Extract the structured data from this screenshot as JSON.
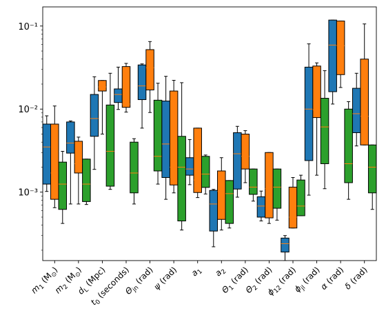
{
  "chart_data": {
    "type": "box",
    "yscale": "log",
    "ylim": [
      0.00015,
      0.17
    ],
    "y_tick_labels": [
      "10⁻³",
      "10⁻²",
      "10⁻¹"
    ],
    "y_ticks": [
      0.001,
      0.01,
      0.1
    ],
    "grid": false,
    "series_colors": [
      "#1f77b4",
      "#ff7f0e",
      "#2ca02c"
    ],
    "median_color": "#ff7f0e",
    "categories": [
      {
        "main": "m",
        "sub": "1",
        "rest": " (M",
        "sun": "⊙",
        "close": ")"
      },
      {
        "main": "m",
        "sub": "2",
        "rest": " (M",
        "sun": "⊙",
        "close": ")"
      },
      {
        "main": "d",
        "sub": "L",
        "rest": " (Mpc)"
      },
      {
        "main": "t",
        "sub": "0",
        "rest": " (seconds)"
      },
      {
        "main": "Θ",
        "sub": "jn",
        "rest": " (rad)"
      },
      {
        "main": "ψ",
        "rest": " (rad)"
      },
      {
        "main": "a",
        "sub": "1"
      },
      {
        "main": "a",
        "sub": "2"
      },
      {
        "main": "Θ",
        "sub": "1",
        "rest": " (rad)"
      },
      {
        "main": "Θ",
        "sub": "2",
        "rest": " (rad)"
      },
      {
        "main": "ϕ",
        "sub": "12",
        "rest": " (rad)"
      },
      {
        "main": "ϕ",
        "sub": "jl",
        "rest": " (rad)"
      },
      {
        "main": "α",
        "rest": " (rad)"
      },
      {
        "main": "δ",
        "rest": " (rad)"
      }
    ],
    "boxes": [
      [
        {
          "wlo": 0.00102,
          "q1": 0.00125,
          "med": 0.0035,
          "q3": 0.0066,
          "whi": 0.0083
        },
        {
          "wlo": 0.00065,
          "q1": 0.00082,
          "med": 0.0017,
          "q3": 0.0066,
          "whi": 0.0109
        },
        {
          "wlo": 0.00042,
          "q1": 0.00062,
          "med": 0.00125,
          "q3": 0.0023,
          "whi": 0.0031
        }
      ],
      [
        {
          "wlo": 0.00072,
          "q1": 0.00295,
          "med": 0.0039,
          "q3": 0.007,
          "whi": 0.0072
        },
        {
          "wlo": 0.00072,
          "q1": 0.0017,
          "med": 0.0022,
          "q3": 0.0041,
          "whi": 0.0046
        },
        {
          "wlo": 0.00071,
          "q1": 0.00077,
          "med": 0.00125,
          "q3": 0.0025,
          "whi": 0.0025
        }
      ],
      [
        {
          "wlo": 0.00188,
          "q1": 0.0047,
          "med": 0.0077,
          "q3": 0.015,
          "whi": 0.0245
        },
        {
          "wlo": 0.005,
          "q1": 0.0165,
          "med": 0.0185,
          "q3": 0.0221,
          "whi": 0.0221
        },
        {
          "wlo": 0.00108,
          "q1": 0.00118,
          "med": 0.0031,
          "q3": 0.0112,
          "whi": 0.027
        }
      ],
      [
        {
          "wlo": 0.0099,
          "q1": 0.012,
          "med": 0.015,
          "q3": 0.0175,
          "whi": 0.032
        },
        {
          "wlo": 0.0092,
          "q1": 0.0105,
          "med": 0.0115,
          "q3": 0.0325,
          "whi": 0.0355
        },
        {
          "wlo": 0.00072,
          "q1": 0.00098,
          "med": 0.0017,
          "q3": 0.004,
          "whi": 0.0044
        }
      ],
      [
        {
          "wlo": 0.0059,
          "q1": 0.013,
          "med": 0.019,
          "q3": 0.034,
          "whi": 0.035
        },
        {
          "wlo": 0.0091,
          "q1": 0.017,
          "med": 0.0315,
          "q3": 0.052,
          "whi": 0.065
        },
        {
          "wlo": 0.00125,
          "q1": 0.0018,
          "med": 0.0027,
          "q3": 0.0128,
          "whi": 0.0205
        }
      ],
      [
        {
          "wlo": 0.00082,
          "q1": 0.0015,
          "med": 0.0038,
          "q3": 0.0125,
          "whi": 0.0248
        },
        {
          "wlo": 0.00098,
          "q1": 0.00122,
          "med": 0.002,
          "q3": 0.0165,
          "whi": 0.0222
        },
        {
          "wlo": 0.00035,
          "q1": 0.00045,
          "med": 0.002,
          "q3": 0.0047,
          "whi": 0.0208
        }
      ],
      [
        {
          "wlo": 0.00123,
          "q1": 0.0016,
          "med": 0.0019,
          "q3": 0.0026,
          "whi": 0.0043
        },
        {
          "wlo": 0.00086,
          "q1": 0.00099,
          "med": 0.0014,
          "q3": 0.0059,
          "whi": 0.0059
        },
        {
          "wlo": 0.00095,
          "q1": 0.00114,
          "med": 0.00165,
          "q3": 0.0027,
          "whi": 0.0028
        }
      ],
      [
        {
          "wlo": 0.00022,
          "q1": 0.00034,
          "med": 0.00072,
          "q3": 0.00105,
          "whi": 0.00108
        },
        {
          "wlo": 0.00035,
          "q1": 0.00047,
          "med": 0.00102,
          "q3": 0.0018,
          "whi": 0.0026
        },
        {
          "wlo": 0.00037,
          "q1": 0.00042,
          "med": 0.00096,
          "q3": 0.00138,
          "whi": 0.00138
        }
      ],
      [
        {
          "wlo": 0.00087,
          "q1": 0.00109,
          "med": 0.0029,
          "q3": 0.0052,
          "whi": 0.0062
        },
        {
          "wlo": 0.0013,
          "q1": 0.0019,
          "med": 0.0027,
          "q3": 0.005,
          "whi": 0.0055
        },
        {
          "wlo": 0.00078,
          "q1": 0.00094,
          "med": 0.00115,
          "q3": 0.0019,
          "whi": 0.0019
        }
      ],
      [
        {
          "wlo": 0.00045,
          "q1": 0.0005,
          "med": 0.00068,
          "q3": 0.00088,
          "whi": 0.00103
        },
        {
          "wlo": 0.00042,
          "q1": 0.00049,
          "med": 0.0011,
          "q3": 0.003,
          "whi": 0.003
        },
        {
          "wlo": 0.00046,
          "q1": 0.00064,
          "med": 0.00115,
          "q3": 0.0019,
          "whi": 0.0019
        }
      ],
      [
        {
          "wlo": 0.00015,
          "q1": 0.00019,
          "med": 0.00024,
          "q3": 0.00028,
          "whi": 0.0003
        },
        {
          "wlo": 0.00037,
          "q1": 0.00037,
          "med": 0.0005,
          "q3": 0.00115,
          "whi": 0.0015
        },
        {
          "wlo": 0.00052,
          "q1": 0.00052,
          "med": 0.00068,
          "q3": 0.0014,
          "whi": 0.0016
        }
      ],
      [
        {
          "wlo": 0.00092,
          "q1": 0.0024,
          "med": 0.01,
          "q3": 0.032,
          "whi": 0.061
        },
        {
          "wlo": 0.0016,
          "q1": 0.0079,
          "med": 0.0098,
          "q3": 0.033,
          "whi": 0.036
        },
        {
          "wlo": 0.0011,
          "q1": 0.0022,
          "med": 0.0061,
          "q3": 0.0135,
          "whi": 0.029
        }
      ],
      [
        {
          "wlo": 0.0115,
          "q1": 0.0162,
          "med": 0.059,
          "q3": 0.118,
          "whi": 0.118
        },
        {
          "wlo": 0.0182,
          "q1": 0.026,
          "med": 0.058,
          "q3": 0.115,
          "whi": 0.115
        },
        {
          "wlo": 0.00082,
          "q1": 0.0013,
          "med": 0.0022,
          "q3": 0.01,
          "whi": 0.0123
        }
      ],
      [
        {
          "wlo": 0.0036,
          "q1": 0.0052,
          "med": 0.0088,
          "q3": 0.0178,
          "whi": 0.027
        },
        {
          "wlo": 0.0037,
          "q1": 0.0037,
          "med": 0.0082,
          "q3": 0.04,
          "whi": 0.106
        },
        {
          "wlo": 0.00062,
          "q1": 0.00098,
          "med": 0.002,
          "q3": 0.0037,
          "whi": 0.0037
        }
      ]
    ]
  }
}
